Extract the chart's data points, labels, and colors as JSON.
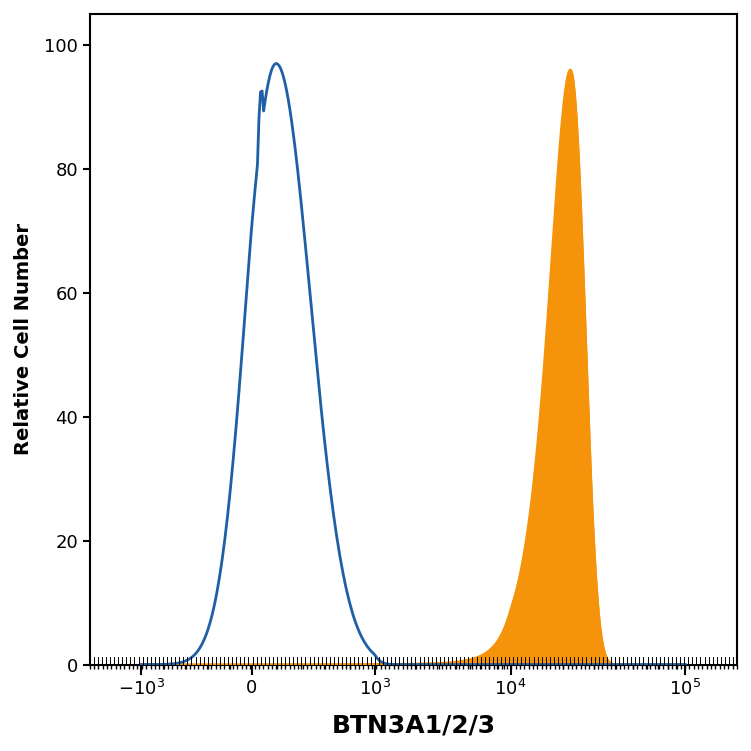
{
  "title": "",
  "xlabel": "BTN3A1/2/3",
  "ylabel": "Relative Cell Number",
  "ylim": [
    0,
    105
  ],
  "yticks": [
    0,
    20,
    40,
    60,
    80,
    100
  ],
  "blue_color": "#1f5fa6",
  "orange_color": "#f5930a",
  "background_color": "#ffffff",
  "xlabel_fontsize": 18,
  "ylabel_fontsize": 14,
  "tick_fontsize": 13,
  "figsize": [
    7.51,
    7.51
  ],
  "dpi": 100,
  "tick_map": {
    "-1000": 0.08,
    "0": 0.25,
    "1000": 0.44,
    "10000": 0.65,
    "100000": 0.92
  }
}
